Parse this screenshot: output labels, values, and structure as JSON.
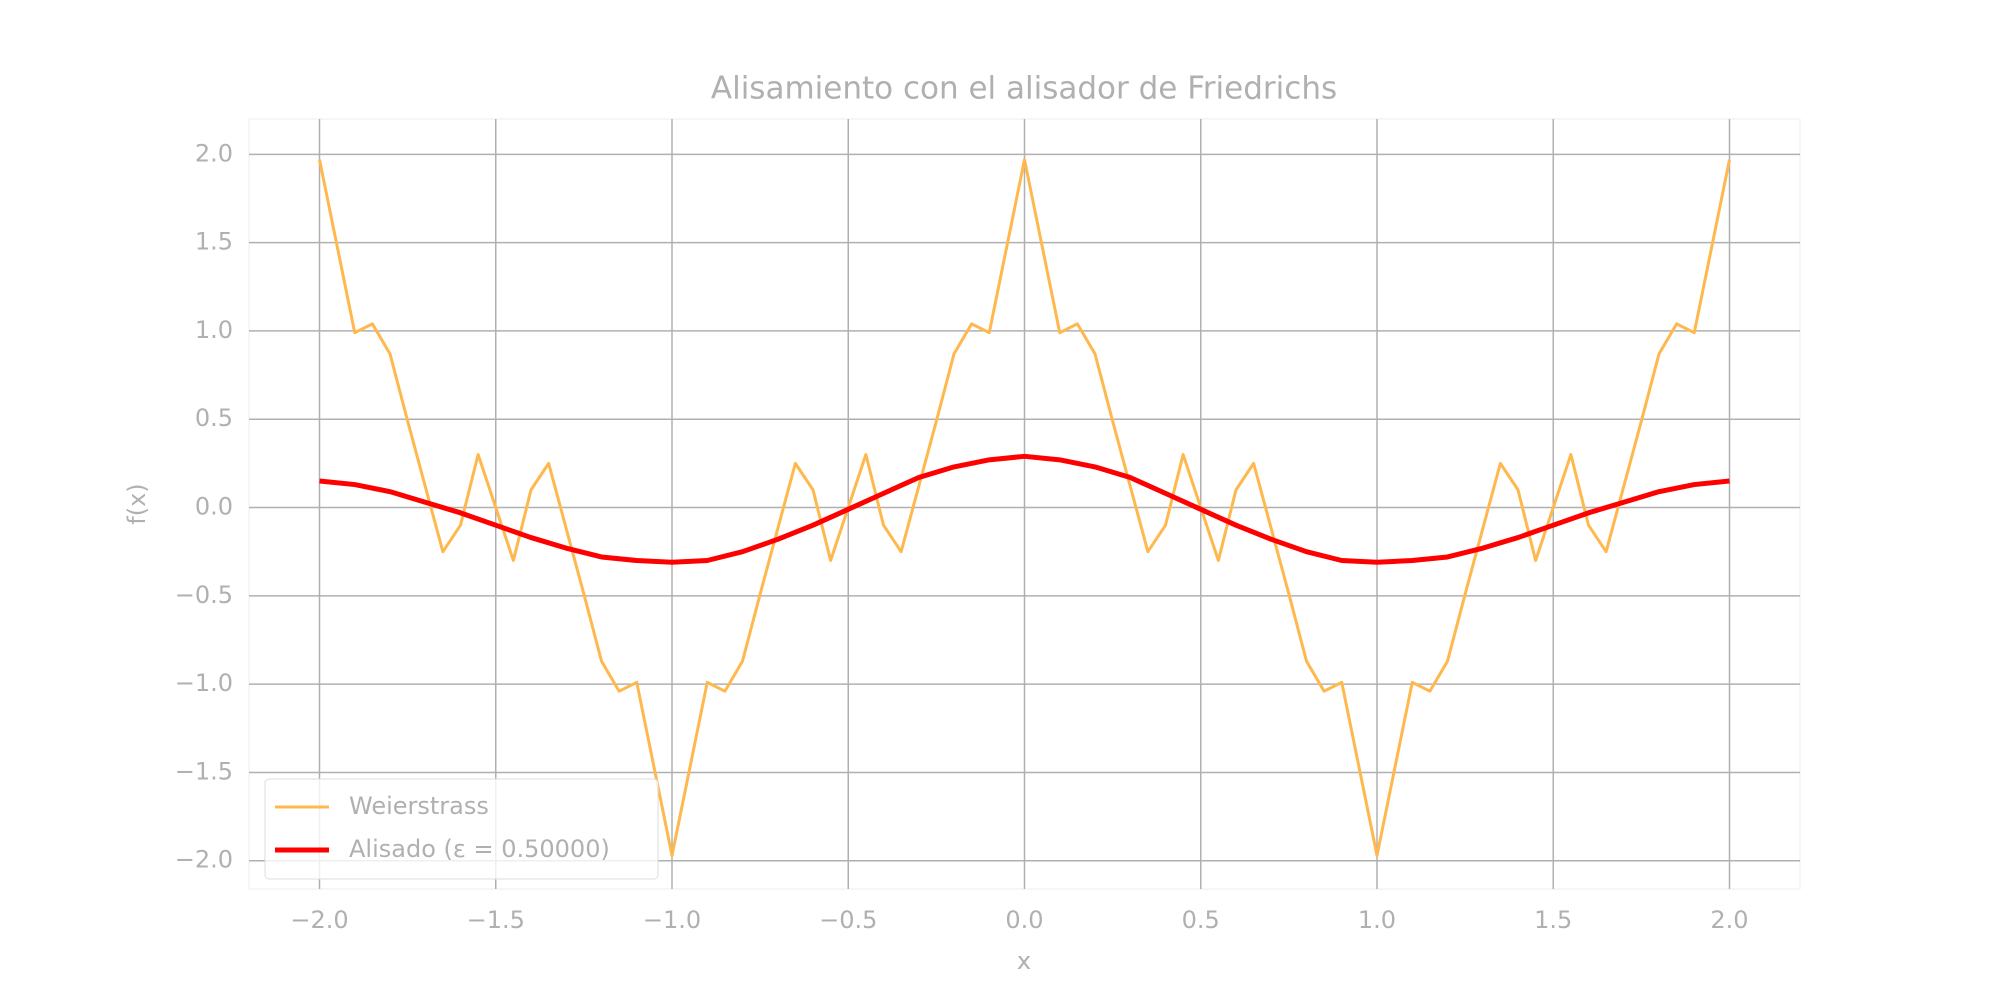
{
  "chart_data": {
    "type": "line",
    "title": "Alisamiento con el alisador de Friedrichs",
    "x_label": "x",
    "y_label": "f(x)",
    "xlim": [
      -2.2,
      2.2
    ],
    "ylim": [
      -2.16,
      2.2
    ],
    "xticks": [
      {
        "value": -2,
        "label": "−2.0"
      },
      {
        "value": -1.5,
        "label": "−1.5"
      },
      {
        "value": -1,
        "label": "−1.0"
      },
      {
        "value": -0.5,
        "label": "−0.5"
      },
      {
        "value": 0,
        "label": "0.0"
      },
      {
        "value": 0.5,
        "label": "0.5"
      },
      {
        "value": 1,
        "label": "1.0"
      },
      {
        "value": 1.5,
        "label": "1.5"
      },
      {
        "value": 2,
        "label": "2.0"
      }
    ],
    "yticks": [
      {
        "value": -2,
        "label": "−2.0"
      },
      {
        "value": -1.5,
        "label": "−1.5"
      },
      {
        "value": -1,
        "label": "−1.0"
      },
      {
        "value": -0.5,
        "label": "−0.5"
      },
      {
        "value": 0,
        "label": "0.0"
      },
      {
        "value": 0.5,
        "label": "0.5"
      },
      {
        "value": 1,
        "label": "1.0"
      },
      {
        "value": 1.5,
        "label": "1.5"
      },
      {
        "value": 2,
        "label": "2.0"
      }
    ],
    "grid": true,
    "legend": "lower left",
    "series": [
      {
        "name": "Weierstrass",
        "color": "#ffb84d",
        "width": 3,
        "x": [
          -2,
          -1.95,
          -1.9,
          -1.85,
          -1.8,
          -1.75,
          -1.7,
          -1.65,
          -1.6,
          -1.55,
          -1.5,
          -1.45,
          -1.4,
          -1.35,
          -1.3,
          -1.25,
          -1.2,
          -1.15,
          -1.1,
          -1.05,
          -1,
          -0.95,
          -0.9,
          -0.85,
          -0.8,
          -0.75,
          -0.7,
          -0.65,
          -0.6,
          -0.55,
          -0.5,
          -0.45,
          -0.4,
          -0.35,
          -0.3,
          -0.25,
          -0.2,
          -0.15,
          -0.1,
          -0.05,
          0,
          0.05,
          0.1,
          0.15,
          0.2,
          0.25,
          0.3,
          0.35,
          0.4,
          0.45,
          0.5,
          0.55,
          0.6,
          0.65,
          0.7,
          0.75,
          0.8,
          0.85,
          0.9,
          0.95,
          1,
          1.05,
          1.1,
          1.15,
          1.2,
          1.25,
          1.3,
          1.35,
          1.4,
          1.45,
          1.5,
          1.55,
          1.6,
          1.65,
          1.7,
          1.75,
          1.8,
          1.85,
          1.9,
          1.95,
          2
        ],
        "values": [
          1.97,
          1.48,
          0.99,
          1.04,
          0.87,
          0.49,
          0.12,
          -0.25,
          -0.1,
          0.3,
          0,
          -0.3,
          0.1,
          0.25,
          -0.12,
          -0.49,
          -0.87,
          -1.04,
          -0.99,
          -1.48,
          -1.97,
          -1.48,
          -0.99,
          -1.04,
          -0.87,
          -0.49,
          -0.12,
          0.25,
          0.1,
          -0.3,
          0,
          0.3,
          -0.1,
          -0.25,
          0.12,
          0.49,
          0.87,
          1.04,
          0.99,
          1.48,
          1.97,
          1.48,
          0.99,
          1.04,
          0.87,
          0.49,
          0.12,
          -0.25,
          -0.1,
          0.3,
          0,
          -0.3,
          0.1,
          0.25,
          -0.12,
          -0.49,
          -0.87,
          -1.04,
          -0.99,
          -1.48,
          -1.97,
          -1.48,
          -0.99,
          -1.04,
          -0.87,
          -0.49,
          -0.12,
          0.25,
          0.1,
          -0.3,
          0,
          0.3,
          -0.1,
          -0.25,
          0.12,
          0.49,
          0.87,
          1.04,
          0.99,
          1.48,
          1.97
        ]
      },
      {
        "name": "Alisado (ε = 0.50000)",
        "color": "#ff0000",
        "width": 5,
        "x": [
          -2,
          -1.9,
          -1.8,
          -1.7,
          -1.6,
          -1.5,
          -1.4,
          -1.3,
          -1.2,
          -1.1,
          -1,
          -0.9,
          -0.8,
          -0.7,
          -0.6,
          -0.5,
          -0.4,
          -0.3,
          -0.2,
          -0.1,
          0,
          0.1,
          0.2,
          0.3,
          0.4,
          0.5,
          0.6,
          0.7,
          0.8,
          0.9,
          1,
          1.1,
          1.2,
          1.3,
          1.4,
          1.5,
          1.6,
          1.7,
          1.8,
          1.9,
          2
        ],
        "values": [
          0.15,
          0.13,
          0.09,
          0.03,
          -0.03,
          -0.1,
          -0.17,
          -0.23,
          -0.28,
          -0.3,
          -0.31,
          -0.3,
          -0.25,
          -0.18,
          -0.1,
          -0.01,
          0.08,
          0.17,
          0.23,
          0.27,
          0.29,
          0.27,
          0.23,
          0.17,
          0.08,
          -0.01,
          -0.1,
          -0.18,
          -0.25,
          -0.3,
          -0.31,
          -0.3,
          -0.28,
          -0.23,
          -0.17,
          -0.1,
          -0.03,
          0.03,
          0.09,
          0.13,
          0.15
        ]
      }
    ]
  }
}
